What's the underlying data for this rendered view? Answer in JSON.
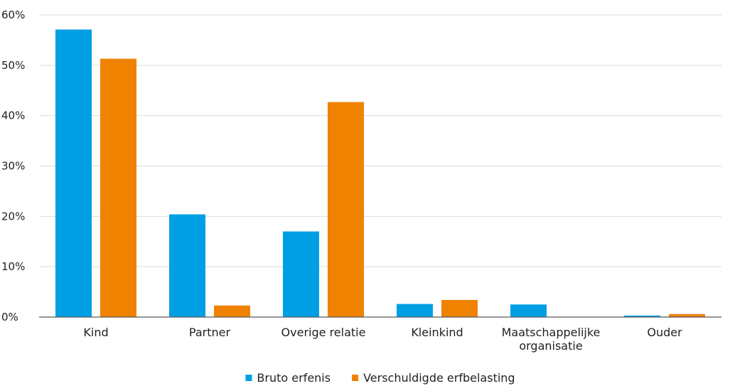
{
  "chart_data": {
    "type": "bar",
    "title": "",
    "xlabel": "",
    "ylabel": "",
    "categories": [
      [
        "Kind"
      ],
      [
        "Partner"
      ],
      [
        "Overige relatie"
      ],
      [
        "Kleinkind"
      ],
      [
        "Maatschappelijke",
        "organisatie"
      ],
      [
        "Ouder"
      ]
    ],
    "series": [
      {
        "name": "Bruto erfenis",
        "color": "#009FE3",
        "values": [
          57.1,
          20.4,
          17.0,
          2.6,
          2.5,
          0.3
        ]
      },
      {
        "name": "Verschuldigde erfbelasting",
        "color": "#EF8200",
        "values": [
          51.3,
          2.3,
          42.7,
          3.4,
          0.0,
          0.6
        ]
      }
    ],
    "ylim": [
      0,
      60
    ],
    "y_ticks": [
      0,
      10,
      20,
      30,
      40,
      50,
      60
    ],
    "y_tick_labels": [
      "0%",
      "10%",
      "20%",
      "30%",
      "40%",
      "50%",
      "60%"
    ],
    "grid": true,
    "grid_color": "#d9d9d9",
    "axis_color": "#595959",
    "legend_position": "bottom-center"
  }
}
